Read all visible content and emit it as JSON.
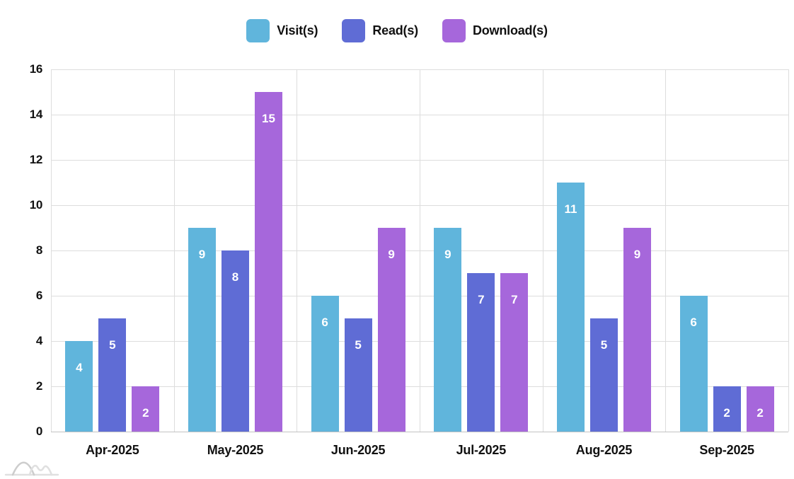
{
  "chart_data": {
    "type": "bar",
    "categories": [
      "Apr-2025",
      "May-2025",
      "Jun-2025",
      "Jul-2025",
      "Aug-2025",
      "Sep-2025"
    ],
    "series": [
      {
        "name": "Visit(s)",
        "color": "#60B5DC",
        "values": [
          4,
          9,
          6,
          9,
          11,
          6
        ]
      },
      {
        "name": "Read(s)",
        "color": "#5F6CD5",
        "values": [
          5,
          8,
          5,
          7,
          5,
          2
        ]
      },
      {
        "name": "Download(s)",
        "color": "#A667DB",
        "values": [
          2,
          15,
          9,
          7,
          9,
          2
        ]
      }
    ],
    "title": "",
    "xlabel": "",
    "ylabel": "",
    "ylim": [
      0,
      16
    ],
    "ytick_step": 2,
    "grid": true,
    "legend_position": "top",
    "value_labels": "inside-top, white, bold"
  },
  "colors": {
    "grid": "#DDDDDD",
    "axis": "#C2C2C2",
    "text": "#111111",
    "bar_label": "#FFFFFF",
    "watermark_dark": "#CDCDCD",
    "watermark_light": "#E0E0E0"
  }
}
